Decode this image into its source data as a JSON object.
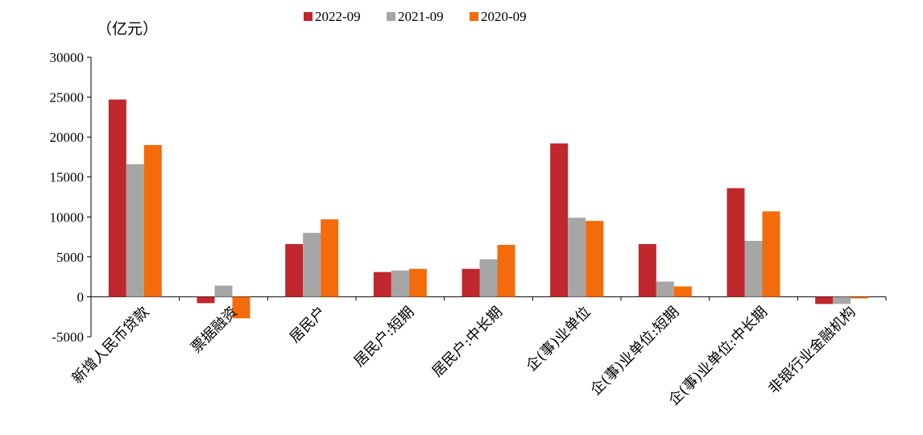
{
  "chart_data": {
    "type": "bar",
    "unit_label": "（亿元）",
    "categories": [
      "新增人民币贷款",
      "票据融资",
      "居民户",
      "居民户:短期",
      "居民户:中长期",
      "企(事)业单位",
      "企(事)业单位:短期",
      "企(事)业单位:中长期",
      "非银行业金融机构"
    ],
    "series": [
      {
        "name": "2022-09",
        "color": "#c0272d",
        "values": [
          24700,
          -800,
          6600,
          3100,
          3500,
          19200,
          6600,
          13600,
          -900
        ]
      },
      {
        "name": "2021-09",
        "color": "#a6a6a6",
        "values": [
          16600,
          1400,
          8000,
          3300,
          4700,
          9900,
          1900,
          7000,
          -900
        ]
      },
      {
        "name": "2020-09",
        "color": "#f46b0b",
        "values": [
          19000,
          -2700,
          9700,
          3500,
          6500,
          9500,
          1300,
          10700,
          -200
        ]
      }
    ],
    "ylim": [
      -5000,
      30000
    ],
    "yticks": [
      30000,
      25000,
      20000,
      15000,
      10000,
      5000,
      0,
      -5000
    ],
    "legend_position": "top",
    "grid": false
  }
}
